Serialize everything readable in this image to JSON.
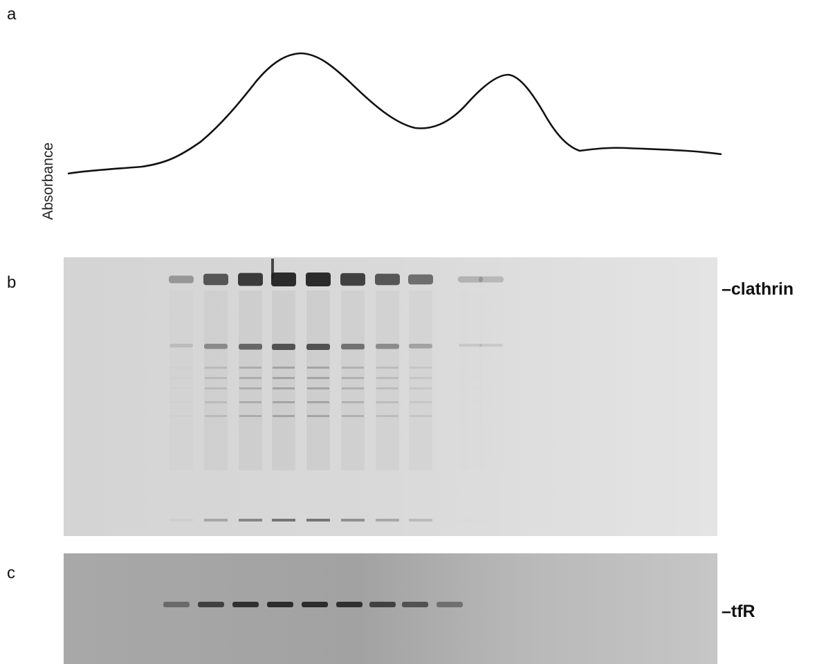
{
  "panels": [
    {
      "label": "a",
      "axis_label": "Absorbance"
    },
    {
      "label": "b",
      "marker": "–clathrin"
    },
    {
      "label": "c",
      "marker": "–tfR"
    }
  ]
}
